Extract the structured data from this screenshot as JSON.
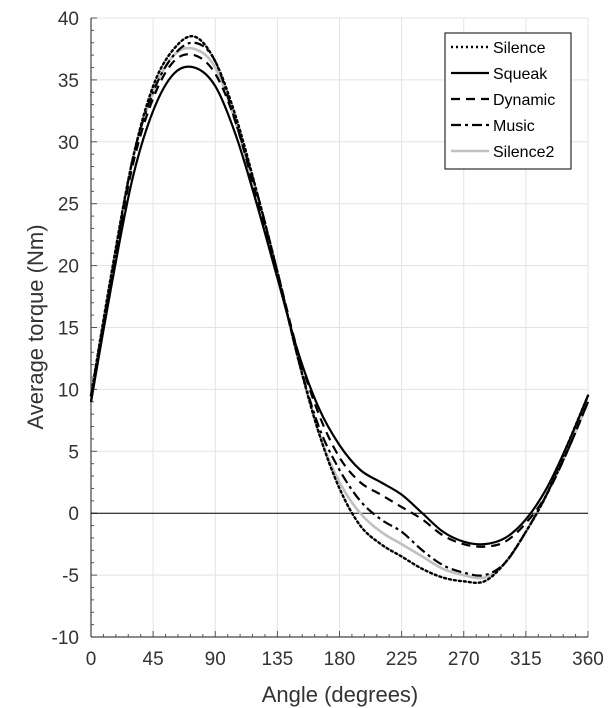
{
  "chart_data": {
    "type": "line",
    "xlabel": "Angle (degrees)",
    "ylabel": "Average torque (Nm)",
    "xlim": [
      0,
      360
    ],
    "ylim": [
      -10,
      40
    ],
    "x_ticks": [
      0,
      45,
      90,
      135,
      180,
      225,
      270,
      315,
      360
    ],
    "y_ticks": [
      -10,
      -5,
      0,
      5,
      10,
      15,
      20,
      25,
      30,
      35,
      40
    ],
    "grid": true,
    "zero_line": true,
    "legend_position": "top-right",
    "x": [
      0,
      15,
      30,
      45,
      60,
      75,
      90,
      105,
      120,
      135,
      150,
      165,
      180,
      195,
      210,
      225,
      240,
      255,
      270,
      285,
      300,
      315,
      330,
      345,
      360
    ],
    "series": [
      {
        "name": "Silence",
        "style": "dotted",
        "color": "#000000",
        "values": [
          9.5,
          19.5,
          28.5,
          34.5,
          37.5,
          38.5,
          36.5,
          32.0,
          26.0,
          19.5,
          12.5,
          6.5,
          2.0,
          -1.0,
          -2.5,
          -3.5,
          -4.5,
          -5.2,
          -5.5,
          -5.5,
          -4.0,
          -1.5,
          1.5,
          5.5,
          9.5
        ]
      },
      {
        "name": "Squeak",
        "style": "solid",
        "color": "#000000",
        "values": [
          9.0,
          18.5,
          27.0,
          32.5,
          35.5,
          36.0,
          34.5,
          30.5,
          25.0,
          19.0,
          13.0,
          8.5,
          5.5,
          3.5,
          2.5,
          1.5,
          0.0,
          -1.5,
          -2.3,
          -2.5,
          -2.0,
          -0.5,
          2.0,
          5.5,
          9.5
        ]
      },
      {
        "name": "Dynamic",
        "style": "dashed",
        "color": "#000000",
        "values": [
          9.0,
          19.0,
          28.0,
          33.5,
          36.5,
          37.0,
          35.5,
          31.5,
          25.5,
          19.5,
          13.0,
          8.0,
          4.5,
          2.5,
          1.5,
          0.5,
          -0.5,
          -1.8,
          -2.5,
          -2.7,
          -2.3,
          -0.8,
          1.5,
          5.0,
          9.0
        ]
      },
      {
        "name": "Music",
        "style": "dashdot",
        "color": "#000000",
        "values": [
          9.5,
          19.0,
          28.5,
          34.0,
          37.0,
          38.0,
          36.5,
          31.5,
          26.0,
          19.5,
          12.5,
          7.0,
          3.5,
          1.0,
          -0.5,
          -1.5,
          -3.0,
          -4.2,
          -4.8,
          -5.0,
          -4.0,
          -1.5,
          1.5,
          5.0,
          9.0
        ]
      },
      {
        "name": "Silence2",
        "style": "solid",
        "color": "#c0c0c0",
        "values": [
          9.5,
          19.5,
          28.5,
          34.0,
          37.0,
          37.5,
          36.0,
          31.5,
          25.5,
          19.5,
          12.5,
          6.5,
          2.5,
          0.0,
          -1.5,
          -2.5,
          -3.5,
          -4.5,
          -5.0,
          -5.2,
          -4.0,
          -1.5,
          1.5,
          5.0,
          9.0
        ]
      }
    ]
  }
}
